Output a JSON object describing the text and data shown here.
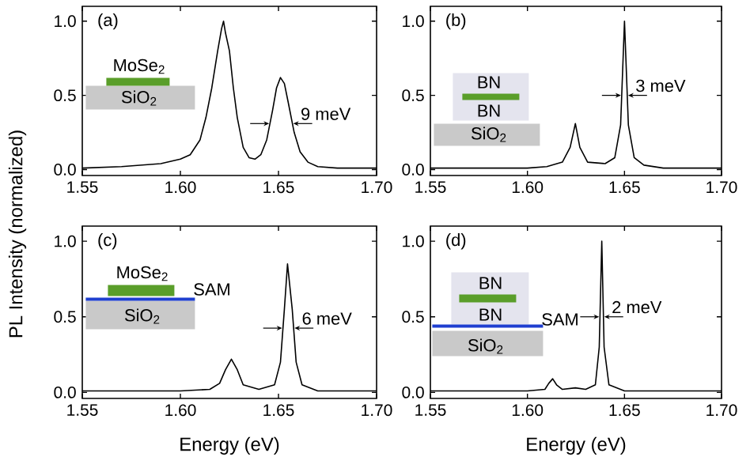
{
  "chart_data": [
    {
      "type": "line",
      "ylabel": "PL Intensity (normalized)",
      "series": [
        {
          "color": "#000000",
          "x": [
            1.55,
            1.57,
            1.59,
            1.6,
            1.605,
            1.61,
            1.613,
            1.616,
            1.619,
            1.621,
            1.622,
            1.623,
            1.625,
            1.627,
            1.629,
            1.632,
            1.635,
            1.638,
            1.641,
            1.644,
            1.647,
            1.649,
            1.651,
            1.653,
            1.655,
            1.658,
            1.661,
            1.665,
            1.67,
            1.68,
            1.7
          ],
          "values": [
            0.01,
            0.02,
            0.04,
            0.07,
            0.1,
            0.2,
            0.35,
            0.55,
            0.8,
            0.95,
            1.0,
            0.92,
            0.8,
            0.55,
            0.35,
            0.15,
            0.08,
            0.07,
            0.1,
            0.2,
            0.4,
            0.55,
            0.62,
            0.58,
            0.45,
            0.25,
            0.12,
            0.05,
            0.02,
            0.01,
            0.01
          ]
        }
      ],
      "xlim": [
        1.55,
        1.7
      ],
      "ylim": [
        -0.04,
        1.1
      ],
      "xticks": [
        {
          "value": 1.55,
          "label": "1.55"
        },
        {
          "value": 1.6,
          "label": "1.60"
        },
        {
          "value": 1.65,
          "label": "1.65"
        },
        {
          "value": 1.7,
          "label": "1.70"
        }
      ],
      "yticks": [
        {
          "value": 0,
          "label": "0.0"
        },
        {
          "value": 0.5,
          "label": "0.5"
        },
        {
          "value": 1,
          "label": "1.0"
        }
      ],
      "annotations": [
        "(a)",
        "9 meV",
        "MoSe$_{2}$",
        "SiO$_{2}$"
      ]
    },
    {
      "type": "line",
      "series": [
        {
          "color": "#000000",
          "x": [
            1.55,
            1.6,
            1.61,
            1.618,
            1.622,
            1.6247,
            1.627,
            1.631,
            1.64,
            1.645,
            1.648,
            1.65,
            1.652,
            1.655,
            1.66,
            1.67,
            1.7
          ],
          "values": [
            0.01,
            0.01,
            0.02,
            0.05,
            0.15,
            0.31,
            0.15,
            0.05,
            0.04,
            0.08,
            0.3,
            1.0,
            0.3,
            0.08,
            0.03,
            0.01,
            0.01
          ]
        }
      ],
      "xlim": [
        1.55,
        1.7
      ],
      "ylim": [
        -0.04,
        1.1
      ],
      "xticks": [
        {
          "value": 1.55,
          "label": "1.55"
        },
        {
          "value": 1.6,
          "label": "1.60"
        },
        {
          "value": 1.65,
          "label": "1.65"
        },
        {
          "value": 1.7,
          "label": "1.70"
        }
      ],
      "yticks": [
        {
          "value": 0,
          "label": "0.0"
        },
        {
          "value": 0.5,
          "label": "0.5"
        },
        {
          "value": 1,
          "label": "1.0"
        }
      ],
      "annotations": [
        "(b)",
        "3 meV",
        "BN",
        "BN",
        "SiO$_{2}$"
      ]
    },
    {
      "type": "line",
      "xlabel": "Energy (eV)",
      "series": [
        {
          "color": "#000000",
          "x": [
            1.55,
            1.6,
            1.615,
            1.62,
            1.623,
            1.626,
            1.629,
            1.632,
            1.64,
            1.648,
            1.651,
            1.653,
            1.6546,
            1.657,
            1.659,
            1.662,
            1.67,
            1.7
          ],
          "values": [
            0.01,
            0.01,
            0.02,
            0.06,
            0.15,
            0.22,
            0.15,
            0.05,
            0.02,
            0.05,
            0.2,
            0.55,
            0.85,
            0.55,
            0.2,
            0.05,
            0.01,
            0.01
          ]
        }
      ],
      "xlim": [
        1.55,
        1.7
      ],
      "ylim": [
        -0.04,
        1.1
      ],
      "xticks": [
        {
          "value": 1.55,
          "label": "1.55"
        },
        {
          "value": 1.6,
          "label": "1.60"
        },
        {
          "value": 1.65,
          "label": "1.65"
        },
        {
          "value": 1.7,
          "label": "1.70"
        }
      ],
      "yticks": [
        {
          "value": 0,
          "label": "0.0"
        },
        {
          "value": 0.5,
          "label": "0.5"
        },
        {
          "value": 1,
          "label": "1.0"
        }
      ],
      "annotations": [
        "(c)",
        "6 meV",
        "MoSe$_{2}$",
        "SAM",
        "SiO$_{2}$"
      ]
    },
    {
      "type": "line",
      "xlabel": "Energy (eV)",
      "series": [
        {
          "color": "#000000",
          "x": [
            1.55,
            1.6,
            1.609,
            1.611,
            1.613,
            1.615,
            1.618,
            1.6247,
            1.63,
            1.635,
            1.637,
            1.6383,
            1.6395,
            1.642,
            1.65,
            1.7
          ],
          "values": [
            0.01,
            0.01,
            0.02,
            0.06,
            0.09,
            0.05,
            0.02,
            0.03,
            0.02,
            0.05,
            0.3,
            1.0,
            0.3,
            0.05,
            0.01,
            0.01
          ]
        }
      ],
      "xlim": [
        1.55,
        1.7
      ],
      "ylim": [
        -0.04,
        1.1
      ],
      "xticks": [
        {
          "value": 1.55,
          "label": "1.55"
        },
        {
          "value": 1.6,
          "label": "1.60"
        },
        {
          "value": 1.65,
          "label": "1.65"
        },
        {
          "value": 1.7,
          "label": "1.70"
        }
      ],
      "yticks": [
        {
          "value": 0,
          "label": "0.0"
        },
        {
          "value": 0.5,
          "label": "0.5"
        },
        {
          "value": 1,
          "label": "1.0"
        }
      ],
      "annotations": [
        "(d)",
        "2 meV",
        "BN",
        "BN",
        "SAM",
        "SiO$_{2}$"
      ]
    }
  ]
}
